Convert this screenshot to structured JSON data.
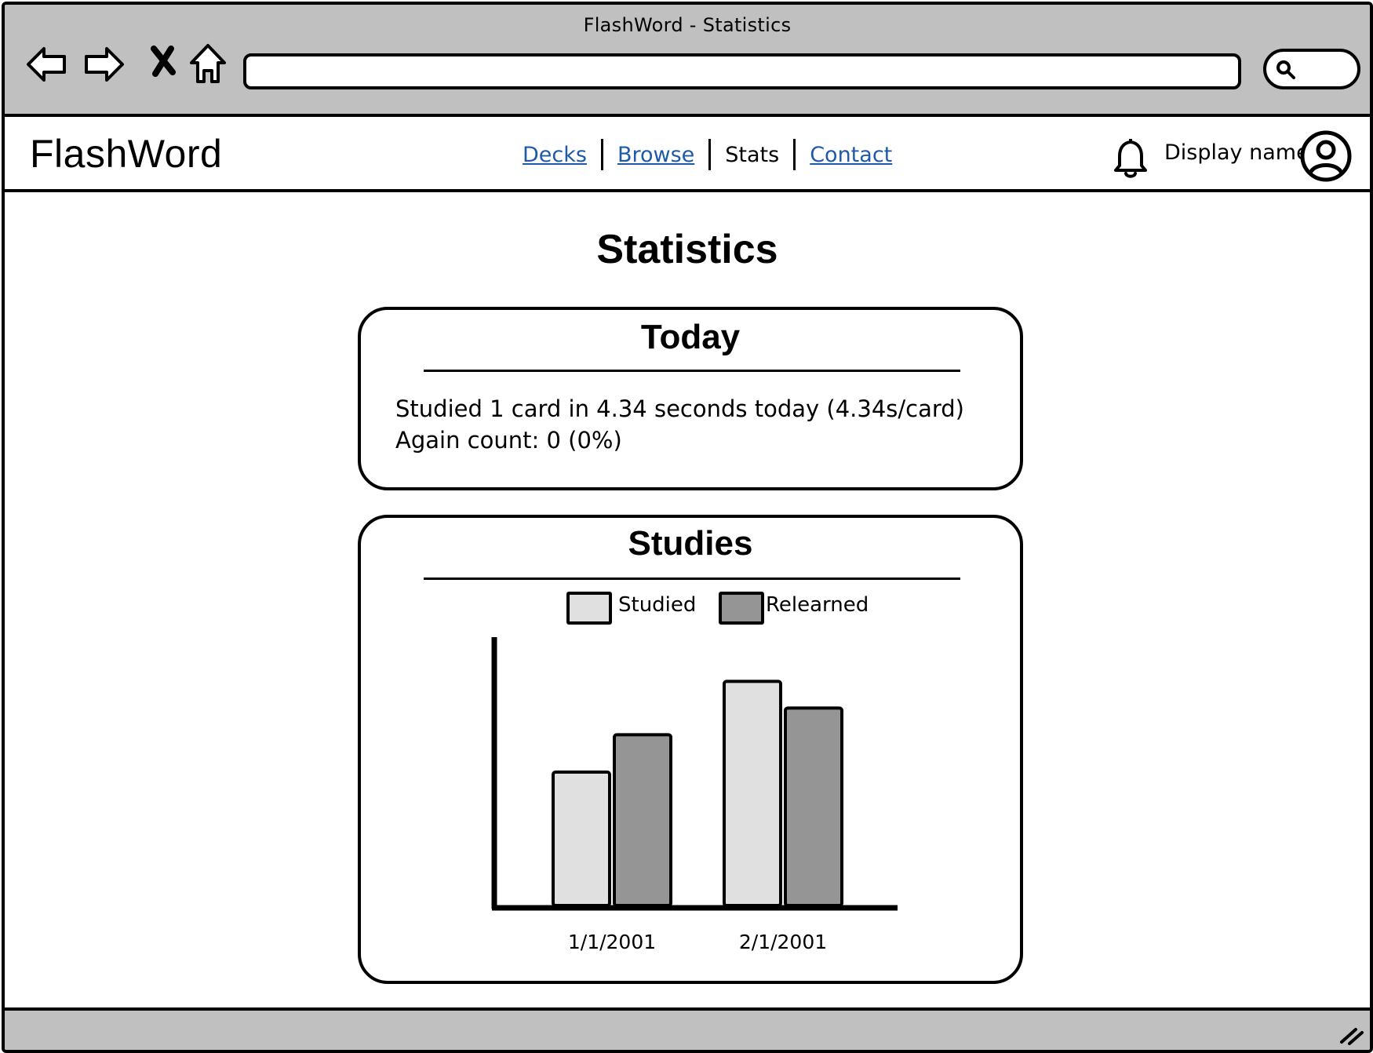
{
  "browser": {
    "title": "FlashWord - Statistics",
    "url_value": "",
    "search_value": ""
  },
  "header": {
    "brand": "FlashWord",
    "nav": [
      {
        "label": "Decks",
        "link": true
      },
      {
        "label": "Browse",
        "link": true
      },
      {
        "label": "Stats",
        "link": false
      },
      {
        "label": "Contact",
        "link": true
      }
    ],
    "user": {
      "display_name": "Display name"
    }
  },
  "page": {
    "title": "Statistics"
  },
  "today": {
    "title": "Today",
    "line1": "Studied 1 card in 4.34 seconds today (4.34s/card)",
    "line2": "Again count: 0 (0%)"
  },
  "studies": {
    "title": "Studies",
    "legend": [
      {
        "label": "Studied",
        "color": "#e0e0e0"
      },
      {
        "label": "Relearned",
        "color": "#959595"
      }
    ]
  },
  "chart_data": {
    "type": "bar",
    "categories": [
      "1/1/2001",
      "2/1/2001"
    ],
    "series": [
      {
        "name": "Studied",
        "values": [
          50,
          84
        ],
        "color": "#e0e0e0"
      },
      {
        "name": "Relearned",
        "values": [
          64,
          74
        ],
        "color": "#959595"
      }
    ],
    "ylim": [
      0,
      100
    ],
    "grid": false,
    "legend_position": "top-center"
  },
  "colors": {
    "chrome": "#c0c0c0",
    "link": "#1f5aa8"
  }
}
